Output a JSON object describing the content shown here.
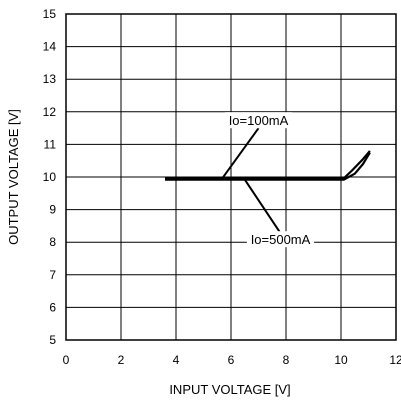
{
  "chart_data": {
    "type": "line",
    "title": "",
    "xlabel": "INPUT VOLTAGE [V]",
    "ylabel": "OUTPUT VOLTAGE [V]",
    "xlim": [
      0,
      12
    ],
    "ylim": [
      5,
      15
    ],
    "xticks": [
      "0",
      "2",
      "4",
      "6",
      "8",
      "10",
      "12"
    ],
    "yticks": [
      "5",
      "6",
      "7",
      "8",
      "9",
      "10",
      "11",
      "12",
      "13",
      "14",
      "15"
    ],
    "grid": true,
    "series": [
      {
        "name": "Io=100mA",
        "x": [
          3.6,
          10.1,
          10.4,
          10.8,
          11.05
        ],
        "y": [
          9.96,
          9.96,
          10.2,
          10.55,
          10.8
        ]
      },
      {
        "name": "Io=500mA",
        "x": [
          3.6,
          10.1,
          10.5,
          10.8,
          11.05
        ],
        "y": [
          9.92,
          9.92,
          10.1,
          10.4,
          10.75
        ]
      }
    ],
    "annotations": [
      {
        "text": "Io=100mA",
        "series": 0,
        "x": 5.7,
        "y": 9.98,
        "label_x": 7.0,
        "label_y": 11.65
      },
      {
        "text": "Io=500mA",
        "series": 1,
        "x": 6.5,
        "y": 9.92,
        "label_x": 7.8,
        "label_y": 8.0
      }
    ]
  }
}
